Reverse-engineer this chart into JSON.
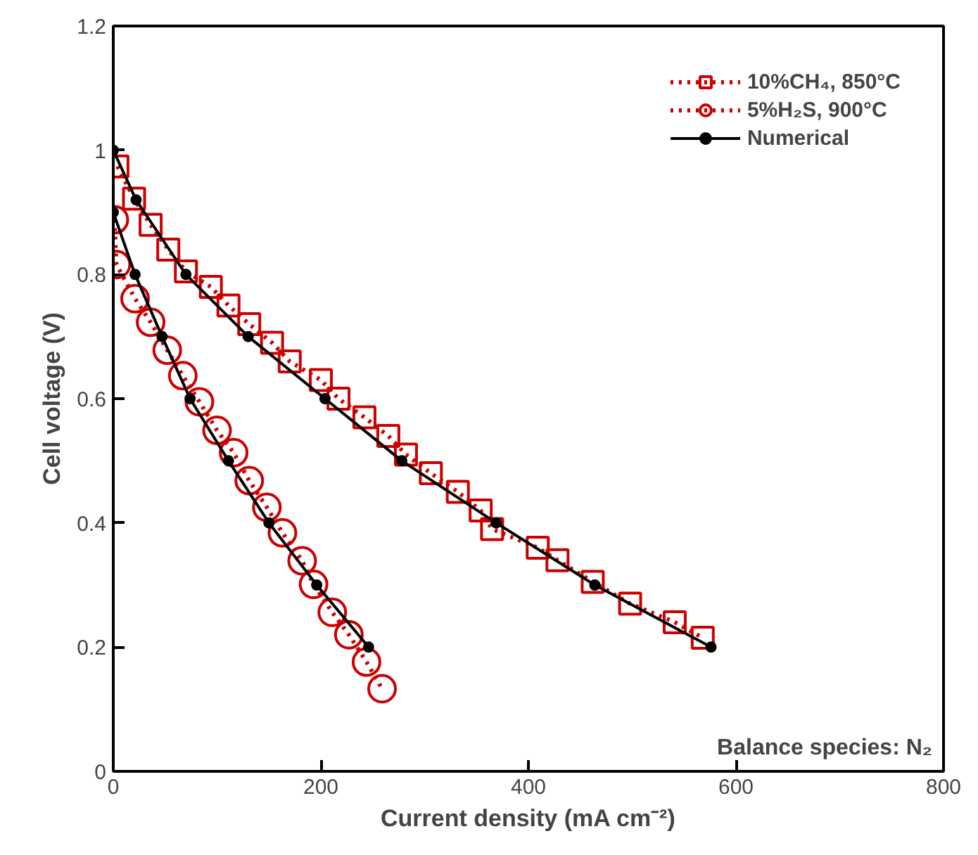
{
  "chart_data": {
    "type": "line",
    "xlabel": "Current density (mA cm⁻²)",
    "ylabel": "Cell voltage (V)",
    "xlim": [
      0,
      800
    ],
    "xticks": [
      0,
      200,
      400,
      600,
      800
    ],
    "ylim": [
      0,
      1.2
    ],
    "yticks": [
      0,
      0.2,
      0.4,
      0.6,
      0.8,
      1,
      1.2
    ],
    "grid": false,
    "legend": "top right",
    "annotations": [
      "Balance species: N₂"
    ],
    "series": [
      {
        "name": "10%CH₄, 850°C",
        "color": "#cc0000",
        "marker": "square",
        "line_style": "dotted",
        "x": [
          4,
          20,
          36,
          53,
          70,
          94,
          111,
          131,
          153,
          170,
          200,
          217,
          242,
          265,
          282,
          306,
          332,
          354,
          365,
          409,
          428,
          462,
          498,
          541,
          568
        ],
        "values": [
          0.974,
          0.922,
          0.88,
          0.84,
          0.805,
          0.78,
          0.75,
          0.72,
          0.69,
          0.66,
          0.63,
          0.6,
          0.57,
          0.54,
          0.51,
          0.48,
          0.45,
          0.42,
          0.39,
          0.36,
          0.34,
          0.305,
          0.27,
          0.24,
          0.215
        ]
      },
      {
        "name": "5%H₂S, 900°C",
        "color": "#cc0000",
        "marker": "circle",
        "line_style": "dotted",
        "x": [
          1,
          3,
          21,
          36,
          52,
          67,
          83,
          100,
          116,
          131,
          148,
          163,
          182,
          193,
          211,
          227,
          244,
          259
        ],
        "values": [
          0.888,
          0.816,
          0.761,
          0.723,
          0.678,
          0.637,
          0.595,
          0.549,
          0.513,
          0.468,
          0.425,
          0.384,
          0.339,
          0.301,
          0.256,
          0.22,
          0.176,
          0.133
        ]
      },
      {
        "name": "Numerical",
        "color": "#000000",
        "marker": "dot",
        "line_style": "solid",
        "x": [
          0,
          22,
          70,
          130,
          204,
          278,
          369,
          464,
          576
        ],
        "values": [
          1.0,
          0.92,
          0.8,
          0.7,
          0.6,
          0.5,
          0.4,
          0.3,
          0.2
        ]
      },
      {
        "color": "#000000",
        "marker": "dot",
        "line_style": "solid",
        "x": [
          0,
          21,
          47,
          74,
          111,
          150,
          196,
          246
        ],
        "values": [
          0.9,
          0.8,
          0.7,
          0.6,
          0.5,
          0.4,
          0.3,
          0.2
        ]
      }
    ]
  }
}
